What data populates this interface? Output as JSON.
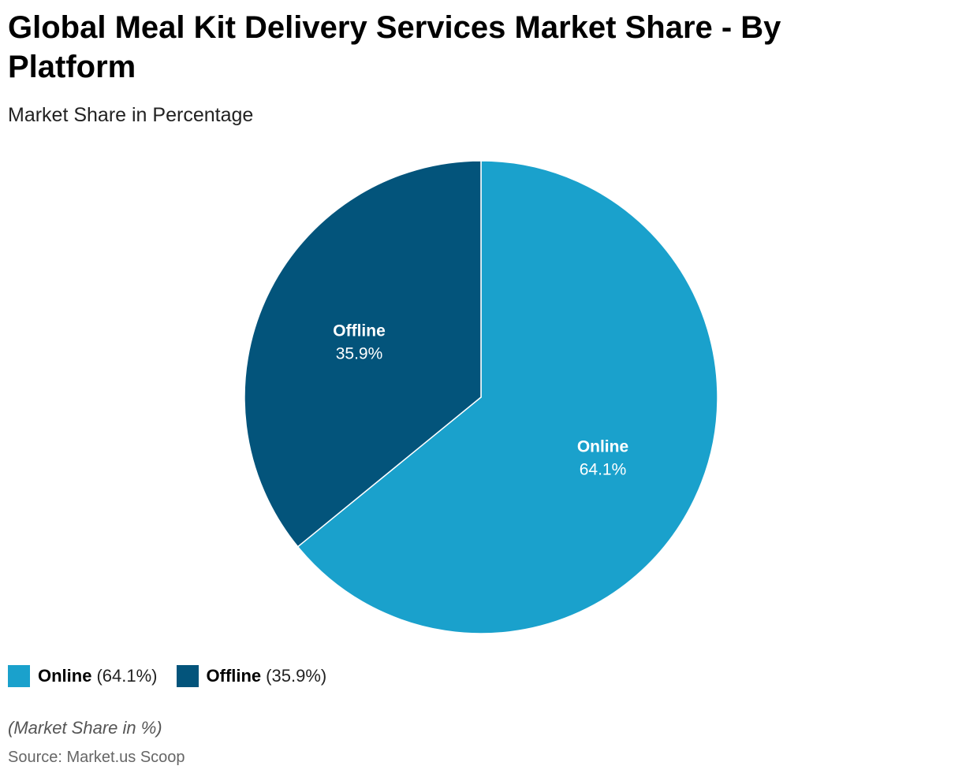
{
  "title": "Global Meal Kit Delivery Services Market Share - By Platform",
  "subtitle": "Market Share in Percentage",
  "chart_data": {
    "type": "pie",
    "title": "Global Meal Kit Delivery Services Market Share - By Platform",
    "subtitle": "Market Share in Percentage",
    "unit": "%",
    "start_angle_deg": 0,
    "direction": "clockwise",
    "slices": [
      {
        "label": "Online",
        "value": 64.1,
        "value_label": "64.1%",
        "color": "#1aa1cc"
      },
      {
        "label": "Offline",
        "value": 35.9,
        "value_label": "35.9%",
        "color": "#03547b"
      }
    ],
    "legend_position": "bottom-left"
  },
  "legend": {
    "items": [
      {
        "label": "Online",
        "value": "(64.1%)",
        "color": "#1aa1cc"
      },
      {
        "label": "Offline",
        "value": "(35.9%)",
        "color": "#03547b"
      }
    ]
  },
  "note": "(Market Share in %)",
  "source": "Source: Market.us Scoop"
}
